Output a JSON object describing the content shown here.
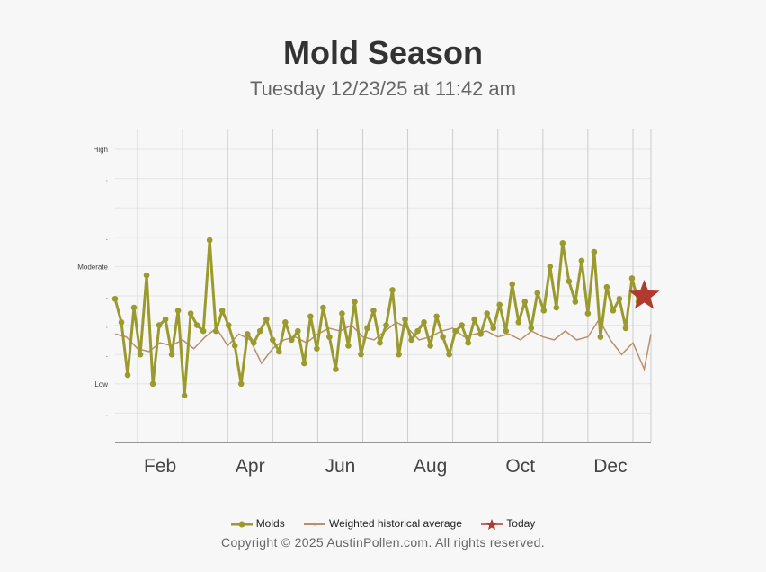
{
  "title": "Mold Season",
  "subtitle": "Tuesday 12/23/25 at 11:42 am",
  "copyright": "Copyright © 2025 AustinPollen.com.  All rights reserved.",
  "colors": {
    "molds": "#9a9a2e",
    "historical": "#b8906a",
    "today": "#b03a2e",
    "grid": "#cccccc"
  },
  "chart_data": {
    "type": "line",
    "x_unit": "month",
    "x_range": [
      1,
      12.9
    ],
    "y_tick_labels": [
      "High",
      ".",
      ".",
      ".",
      "Moderate",
      ".",
      ".",
      ".",
      "Low",
      "."
    ],
    "x_tick_labels": [
      {
        "label": "Feb",
        "x": 2
      },
      {
        "label": "Apr",
        "x": 4
      },
      {
        "label": "Jun",
        "x": 6
      },
      {
        "label": "Aug",
        "x": 8
      },
      {
        "label": "Oct",
        "x": 10
      },
      {
        "label": "Dec",
        "x": 12
      }
    ],
    "series": [
      {
        "name": "Molds",
        "x": [
          1.0,
          1.14,
          1.28,
          1.42,
          1.56,
          1.7,
          1.84,
          1.98,
          2.12,
          2.26,
          2.4,
          2.54,
          2.68,
          2.82,
          2.96,
          3.1,
          3.24,
          3.38,
          3.52,
          3.66,
          3.8,
          3.94,
          4.08,
          4.22,
          4.36,
          4.5,
          4.64,
          4.78,
          4.92,
          5.06,
          5.2,
          5.34,
          5.48,
          5.62,
          5.76,
          5.9,
          6.04,
          6.18,
          6.32,
          6.46,
          6.6,
          6.74,
          6.88,
          7.02,
          7.16,
          7.3,
          7.44,
          7.58,
          7.72,
          7.86,
          8.0,
          8.14,
          8.28,
          8.42,
          8.56,
          8.7,
          8.84,
          8.98,
          9.12,
          9.26,
          9.4,
          9.54,
          9.68,
          9.82,
          9.96,
          10.1,
          10.24,
          10.38,
          10.52,
          10.66,
          10.8,
          10.94,
          11.08,
          11.22,
          11.36,
          11.5,
          11.64,
          11.78,
          11.92,
          12.06,
          12.2,
          12.34,
          12.48,
          12.62
        ],
        "values": [
          4.9,
          4.1,
          2.3,
          4.6,
          3.0,
          5.7,
          2.0,
          4.0,
          4.2,
          3.0,
          4.5,
          1.6,
          4.4,
          4.0,
          3.8,
          6.9,
          3.8,
          4.5,
          4.0,
          3.3,
          2.0,
          3.7,
          3.4,
          3.8,
          4.2,
          3.5,
          3.1,
          4.1,
          3.5,
          3.8,
          2.7,
          4.3,
          3.2,
          4.6,
          3.6,
          2.5,
          4.4,
          3.3,
          4.8,
          3.0,
          3.9,
          4.5,
          3.4,
          4.0,
          5.2,
          3.0,
          4.2,
          3.5,
          3.8,
          4.1,
          3.3,
          4.3,
          3.6,
          3.0,
          3.8,
          4.0,
          3.4,
          4.2,
          3.7,
          4.4,
          3.9,
          4.7,
          3.8,
          5.4,
          4.1,
          4.8,
          3.9,
          5.1,
          4.5,
          6.0,
          4.6,
          6.8,
          5.5,
          4.8,
          6.2,
          4.4,
          6.5,
          3.6,
          5.3,
          4.5,
          4.9,
          3.9,
          5.6,
          4.8
        ]
      },
      {
        "name": "Weighted historical average",
        "x": [
          1.0,
          1.25,
          1.5,
          1.75,
          2.0,
          2.25,
          2.5,
          2.75,
          3.0,
          3.25,
          3.5,
          3.75,
          4.0,
          4.25,
          4.5,
          4.75,
          5.0,
          5.25,
          5.5,
          5.75,
          6.0,
          6.25,
          6.5,
          6.75,
          7.0,
          7.25,
          7.5,
          7.75,
          8.0,
          8.25,
          8.5,
          8.75,
          9.0,
          9.25,
          9.5,
          9.75,
          10.0,
          10.25,
          10.5,
          10.75,
          11.0,
          11.25,
          11.5,
          11.75,
          12.0,
          12.25,
          12.5,
          12.75,
          12.9
        ],
        "values": [
          3.7,
          3.6,
          3.2,
          3.1,
          3.4,
          3.3,
          3.5,
          3.2,
          3.6,
          3.9,
          3.3,
          3.7,
          3.5,
          2.7,
          3.2,
          3.5,
          3.6,
          3.4,
          3.7,
          3.9,
          3.8,
          4.0,
          3.6,
          3.5,
          3.8,
          4.1,
          3.9,
          3.5,
          3.6,
          3.8,
          3.9,
          3.6,
          3.7,
          3.8,
          3.6,
          3.7,
          3.5,
          3.8,
          3.6,
          3.5,
          3.8,
          3.5,
          3.6,
          4.2,
          3.5,
          3.0,
          3.4,
          2.5,
          3.7
        ]
      }
    ],
    "today": {
      "name": "Today",
      "x": 12.75,
      "value": 5.0
    }
  }
}
